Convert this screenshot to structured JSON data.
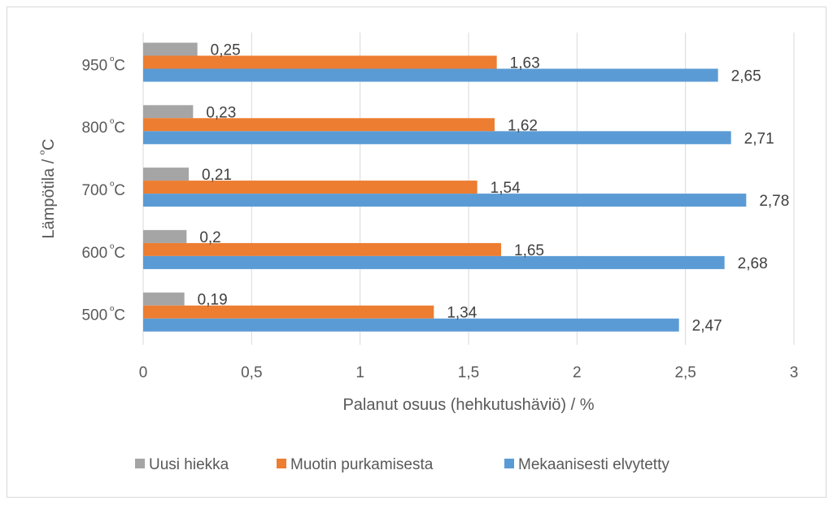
{
  "chart_data": {
    "type": "bar",
    "orientation": "horizontal",
    "categories": [
      "500 ºC",
      "600 ºC",
      "700 ºC",
      "800 ºC",
      "950 ºC"
    ],
    "category_labels": [
      {
        "value": "500",
        "unit": "ºC"
      },
      {
        "value": "600",
        "unit": "ºC"
      },
      {
        "value": "700",
        "unit": "ºC"
      },
      {
        "value": "800",
        "unit": "ºC"
      },
      {
        "value": "950",
        "unit": "ºC"
      }
    ],
    "series": [
      {
        "name": "Uusi hiekka",
        "color": "#a5a5a5",
        "values": [
          0.19,
          0.2,
          0.21,
          0.23,
          0.25
        ],
        "labels": [
          "0,19",
          "0,2",
          "0,21",
          "0,23",
          "0,25"
        ]
      },
      {
        "name": "Muotin purkamisesta",
        "color": "#ed7d31",
        "values": [
          1.34,
          1.65,
          1.54,
          1.62,
          1.63
        ],
        "labels": [
          "1,34",
          "1,65",
          "1,54",
          "1,62",
          "1,63"
        ]
      },
      {
        "name": "Mekaanisesti elvytetty",
        "color": "#5b9bd5",
        "values": [
          2.47,
          2.68,
          2.78,
          2.71,
          2.65
        ],
        "labels": [
          "2,47",
          "2,68",
          "2,78",
          "2,71",
          "2,65"
        ]
      }
    ],
    "xlabel": "Palanut osuus (hehkutushäviö) / %",
    "ylabel": "Lämpötila / ºC",
    "xlim": [
      0,
      3
    ],
    "xticks": [
      0,
      0.5,
      1,
      1.5,
      2,
      2.5,
      3
    ],
    "xtick_labels": [
      "0",
      "0,5",
      "1",
      "1,5",
      "2",
      "2,5",
      "3"
    ],
    "grid": "vertical",
    "legend": "bottom"
  }
}
